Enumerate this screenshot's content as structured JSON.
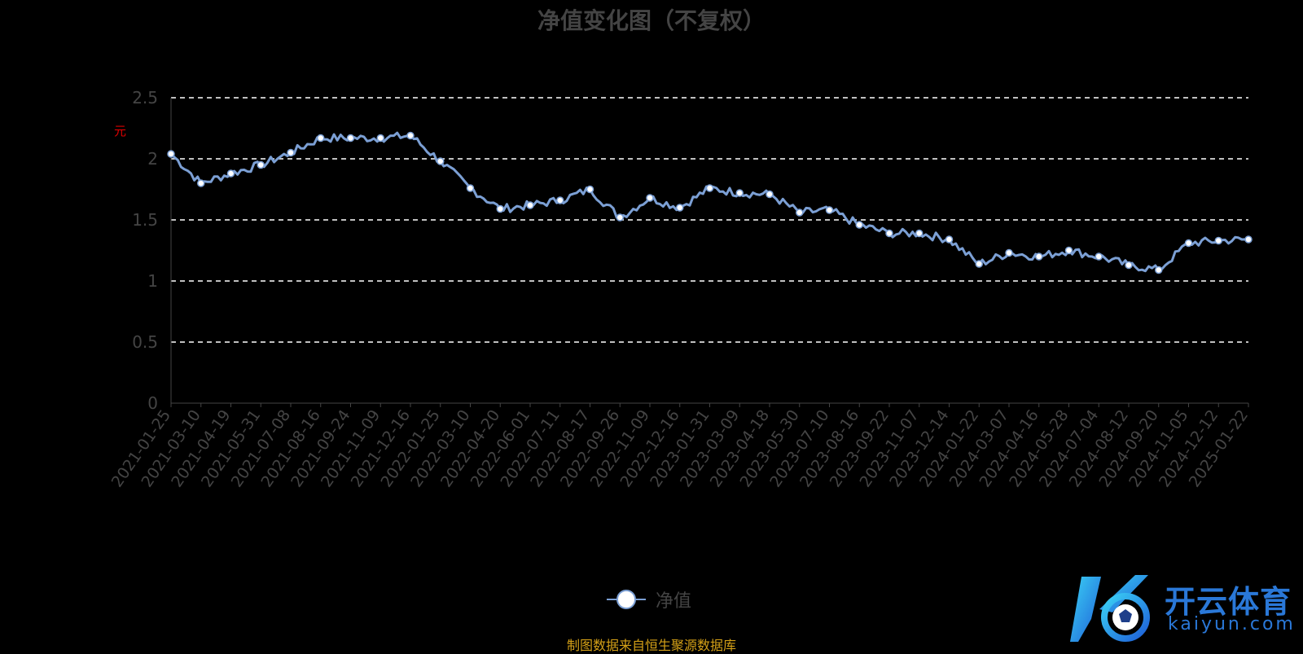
{
  "chart_data": {
    "type": "line",
    "title": "净值变化图（不复权）",
    "ylabel": "元",
    "ylim": [
      0,
      2.5
    ],
    "yticks": [
      "0",
      "0.5",
      "1",
      "1.5",
      "2",
      "2.5"
    ],
    "grid": true,
    "legend_position": "bottom-center",
    "x_tick_labels": [
      "2021-01-25",
      "2021-03-10",
      "2021-04-19",
      "2021-05-31",
      "2021-07-08",
      "2021-08-16",
      "2021-09-24",
      "2021-11-09",
      "2021-12-16",
      "2022-01-25",
      "2022-03-10",
      "2022-04-20",
      "2022-06-01",
      "2022-07-11",
      "2022-08-17",
      "2022-09-26",
      "2022-11-09",
      "2022-12-16",
      "2023-01-31",
      "2023-03-09",
      "2023-04-18",
      "2023-05-30",
      "2023-07-10",
      "2023-08-16",
      "2023-09-22",
      "2023-11-07",
      "2023-12-14",
      "2024-01-22",
      "2024-03-07",
      "2024-04-16",
      "2024-05-28",
      "2024-07-04",
      "2024-08-12",
      "2024-09-20",
      "2024-11-05",
      "2024-12-12",
      "2025-01-22"
    ],
    "series": [
      {
        "name": "净值",
        "color": "#7b9fd4",
        "x": [
          "2021-01-25",
          "2021-03-10",
          "2021-04-19",
          "2021-05-31",
          "2021-07-08",
          "2021-08-16",
          "2021-09-24",
          "2021-11-09",
          "2021-12-16",
          "2022-01-25",
          "2022-03-10",
          "2022-04-20",
          "2022-06-01",
          "2022-07-11",
          "2022-08-17",
          "2022-09-26",
          "2022-11-09",
          "2022-12-16",
          "2023-01-31",
          "2023-03-09",
          "2023-04-18",
          "2023-05-30",
          "2023-07-10",
          "2023-08-16",
          "2023-09-22",
          "2023-11-07",
          "2023-12-14",
          "2024-01-22",
          "2024-03-07",
          "2024-04-16",
          "2024-05-28",
          "2024-07-04",
          "2024-08-12",
          "2024-09-20",
          "2024-11-05",
          "2024-12-12",
          "2025-01-22"
        ],
        "values": [
          2.04,
          1.8,
          1.88,
          1.95,
          2.05,
          2.17,
          2.17,
          2.17,
          2.19,
          1.98,
          1.76,
          1.59,
          1.62,
          1.66,
          1.75,
          1.52,
          1.68,
          1.6,
          1.76,
          1.72,
          1.71,
          1.56,
          1.58,
          1.46,
          1.39,
          1.39,
          1.34,
          1.14,
          1.23,
          1.2,
          1.25,
          1.2,
          1.13,
          1.09,
          1.31,
          1.33,
          1.34
        ]
      }
    ],
    "legend": [
      "净值"
    ]
  },
  "source_note": "制图数据来自恒生聚源数据库",
  "watermark": {
    "cn": "开云体育",
    "en": "kaiyun.com"
  }
}
